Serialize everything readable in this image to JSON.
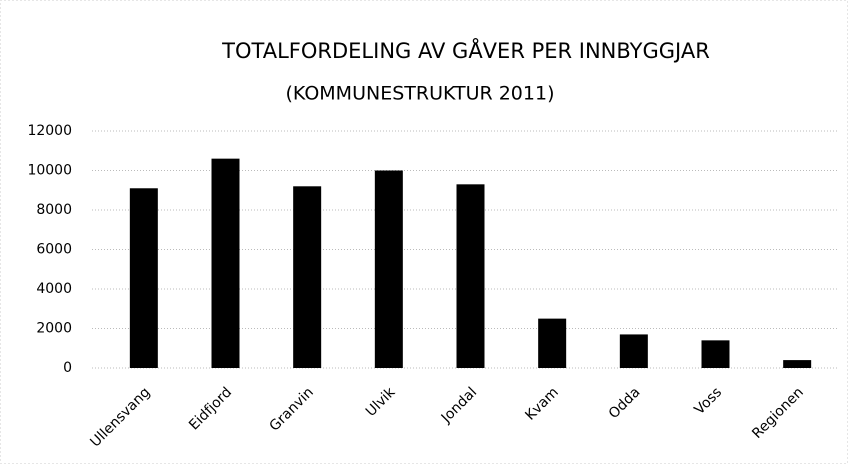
{
  "chart_data": {
    "type": "bar",
    "title": "TOTALFORDELING AV GÅVER PER INNBYGGJAR",
    "subtitle": "(KOMMUNESTRUKTUR 2011)",
    "categories": [
      "Ullensvang",
      "Eidfjord",
      "Granvin",
      "Ulvik",
      "Jondal",
      "Kvam",
      "Odda",
      "Voss",
      "Regionen"
    ],
    "values": [
      9100,
      10600,
      9200,
      10000,
      9300,
      2500,
      1700,
      1400,
      400
    ],
    "color": "#000000",
    "ylim": [
      0,
      12000
    ],
    "yticks": [
      0,
      2000,
      4000,
      6000,
      8000,
      10000,
      12000
    ],
    "grid": true
  }
}
